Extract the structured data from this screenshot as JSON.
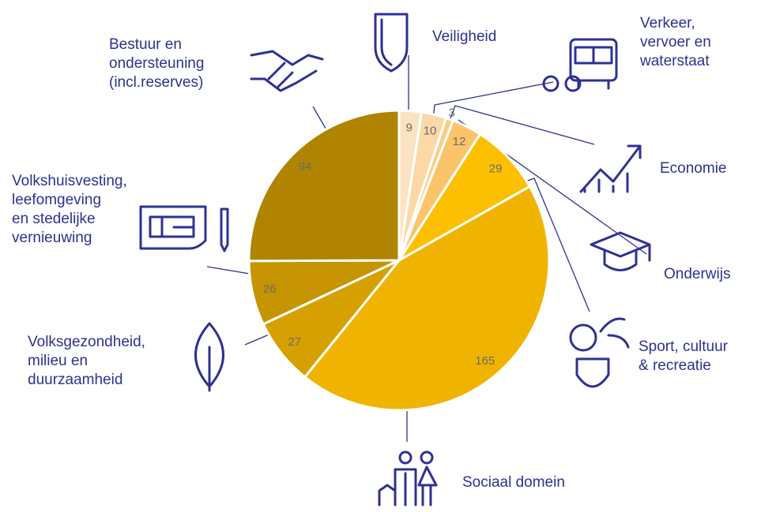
{
  "chart_data": {
    "type": "pie",
    "categories": [
      "Veiligheid",
      "Verkeer,\nvervoer en\nwaterstaat",
      "Economie",
      "Onderwijs",
      "Sport, cultuur\n& recreatie",
      "Sociaal domein",
      "Volksgezondheid,\nmilieu en\nduurzaamheid",
      "Volkshuisvesting,\nleefomgeving\nen stedelijke\nvernieuwing",
      "Bestuur en\nondersteuning\n(incl.reserves)"
    ],
    "values": [
      9,
      10,
      3,
      12,
      29,
      165,
      27,
      26,
      94
    ],
    "colors": [
      "#fbe3c2",
      "#fbd8a6",
      "#fccd86",
      "#fbc46a",
      "#fcc000",
      "#f0b400",
      "#d6a100",
      "#c59400",
      "#b08400"
    ]
  }
}
